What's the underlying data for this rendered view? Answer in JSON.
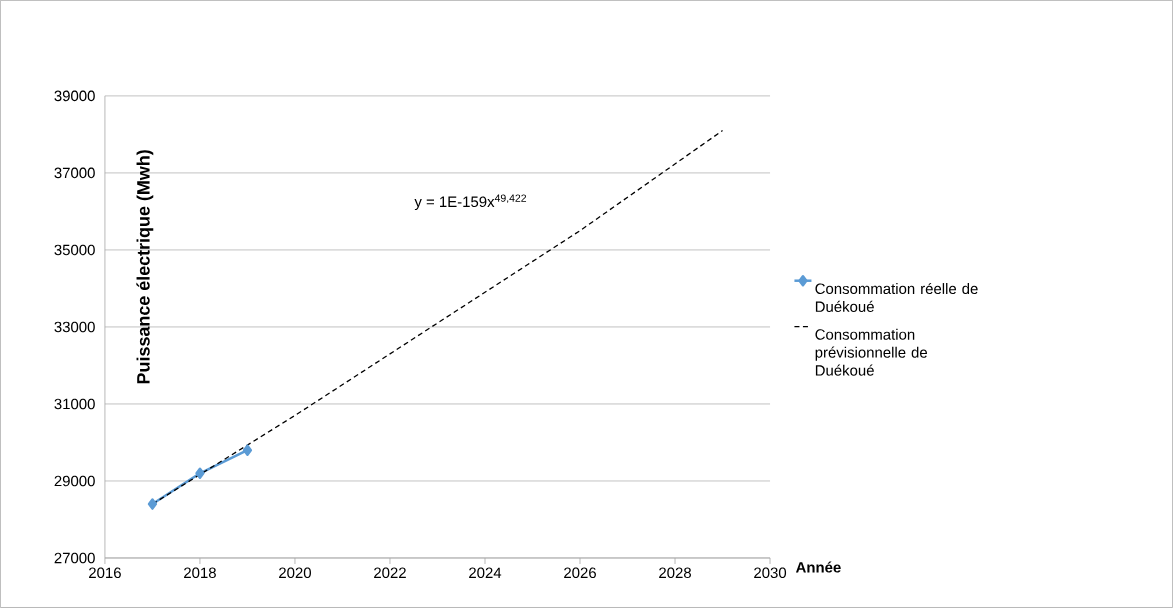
{
  "chart_data": {
    "type": "line",
    "xlabel": "Année",
    "ylabel": "Puissance électrique (Mwh)",
    "xlim": [
      2016,
      2030
    ],
    "xticks": [
      2016,
      2018,
      2020,
      2022,
      2024,
      2026,
      2028,
      2030
    ],
    "ylim": [
      27000,
      39000
    ],
    "yticks": [
      27000,
      29000,
      31000,
      33000,
      35000,
      37000,
      39000
    ],
    "grid": "y",
    "legend": "right",
    "annotations": [
      "y = 1E-159x$^{49,422}$"
    ],
    "series": [
      {
        "name": "Consommation réelle de Duékoué",
        "color": "#5b9bd5",
        "marker": "diamond",
        "line_style": "solid",
        "x": [
          2017,
          2018,
          2019
        ],
        "values": [
          28400,
          29200,
          29800
        ]
      },
      {
        "name": "Consommation prévisionnelle de Duékoué",
        "color": "#000000",
        "marker": "none",
        "line_style": "dashed",
        "x": [
          2017,
          2020,
          2023,
          2026,
          2029
        ],
        "values": [
          28400,
          30700,
          33100,
          35500,
          38100
        ]
      }
    ]
  }
}
